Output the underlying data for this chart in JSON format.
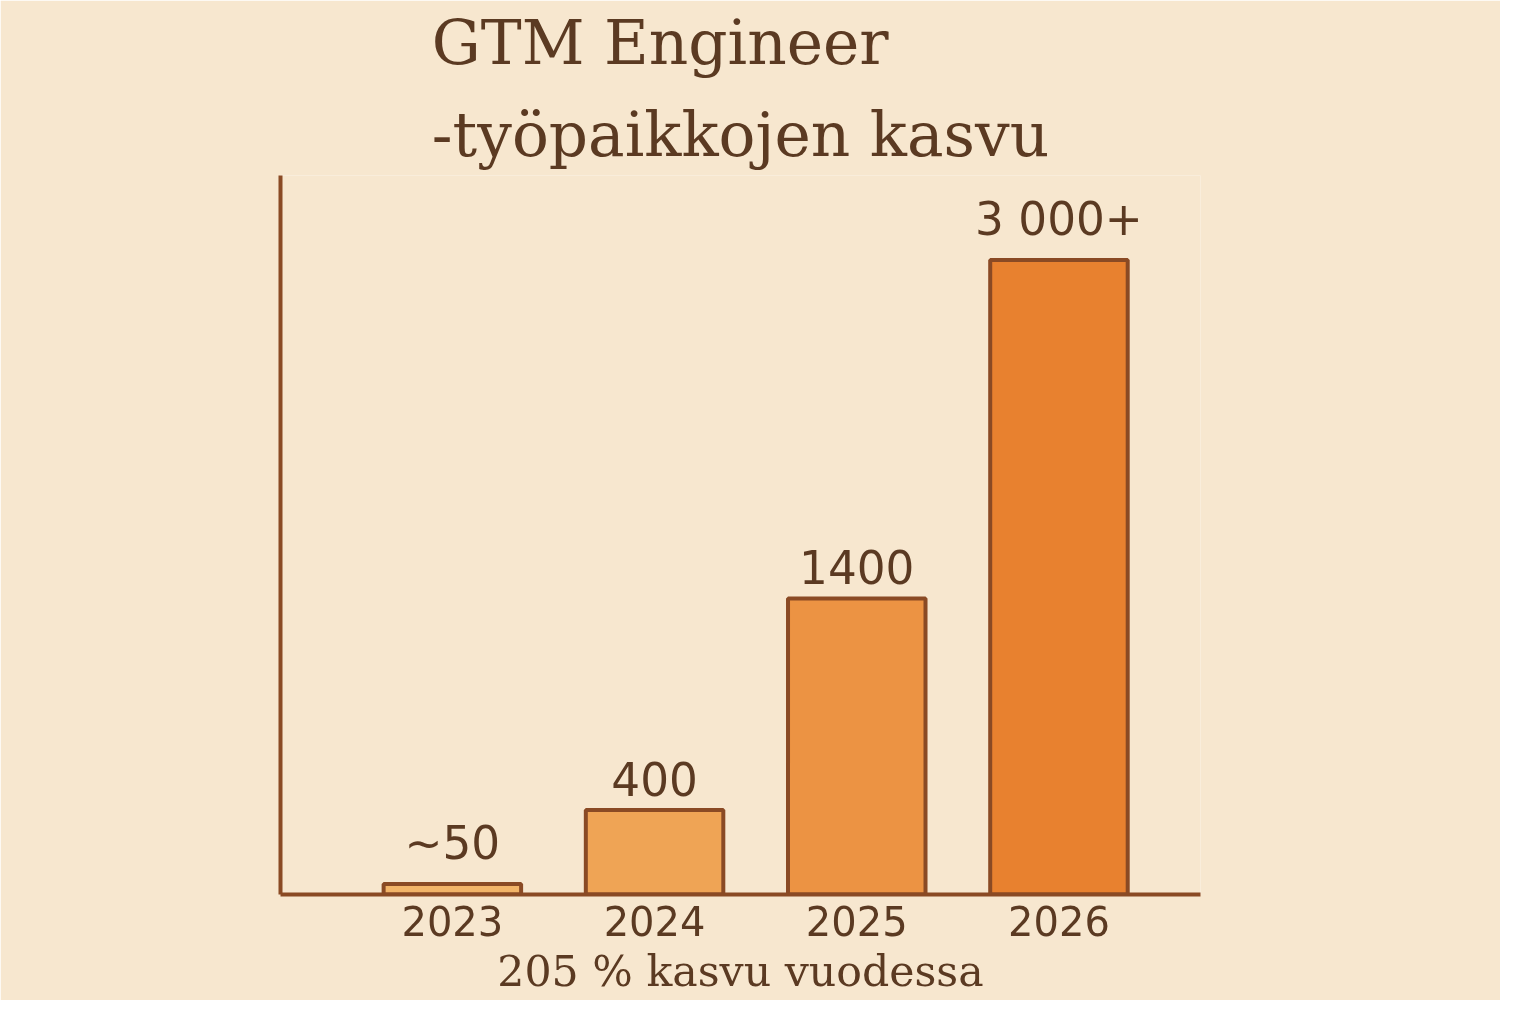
{
  "chart_data": {
    "type": "bar",
    "title": "GTM Engineer -työpaikkojen kasvu",
    "categories": [
      "2023",
      "2024",
      "2025",
      "2026"
    ],
    "values": [
      50,
      400,
      1400,
      3000
    ],
    "value_labels": [
      "~50",
      "400",
      "1400",
      "3 000+"
    ],
    "colors": [
      "#f2b468",
      "#efa455",
      "#ec9343",
      "#e8812f"
    ],
    "ylim": [
      0,
      3400
    ],
    "tick_labels": "x",
    "grid": false,
    "annotations": [
      "205 % kasvu vuodessa"
    ]
  }
}
